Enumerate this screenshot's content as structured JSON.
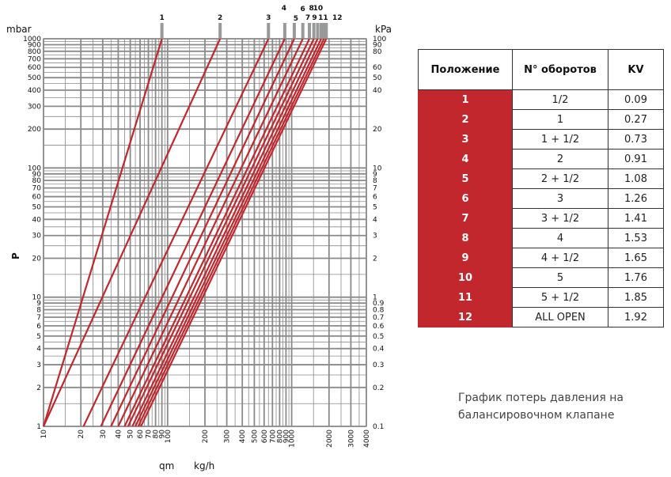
{
  "chart_data": {
    "type": "line",
    "x_scale": "log",
    "y_scale": "log",
    "xlim": [
      10,
      4000
    ],
    "ylim": [
      1,
      1000
    ],
    "left_axis_label": "mbar",
    "right_axis_label": "kPa",
    "p_label": "P",
    "x_label_qm": "qm",
    "x_label_unit": "kg/h",
    "grid": true,
    "line_color": "#c1272d",
    "x_tick_labels": [
      "10",
      "20",
      "30",
      "40",
      "50",
      "60",
      "70",
      "80",
      "90",
      "100",
      "200",
      "300",
      "400",
      "500",
      "600",
      "700",
      "800",
      "900",
      "1000",
      "2000",
      "3000",
      "4000"
    ],
    "y_left_tick_labels": [
      "1",
      "2",
      "3",
      "4",
      "5",
      "6",
      "7",
      "8",
      "9",
      "10",
      "20",
      "30",
      "40",
      "50",
      "60",
      "70",
      "80",
      "90",
      "100",
      "200",
      "300",
      "400",
      "500",
      "600",
      "700",
      "800",
      "900",
      "1000"
    ],
    "y_right_tick_labels": [
      {
        "mbar": 1,
        "label": "0.1"
      },
      {
        "mbar": 2,
        "label": "0.2"
      },
      {
        "mbar": 3,
        "label": "0.3"
      },
      {
        "mbar": 4,
        "label": "0.4"
      },
      {
        "mbar": 5,
        "label": "0.5"
      },
      {
        "mbar": 6,
        "label": "0.6"
      },
      {
        "mbar": 7,
        "label": "0.7"
      },
      {
        "mbar": 8,
        "label": "0.8"
      },
      {
        "mbar": 9,
        "label": "0.9"
      },
      {
        "mbar": 10,
        "label": "1"
      },
      {
        "mbar": 20,
        "label": "2"
      },
      {
        "mbar": 30,
        "label": "3"
      },
      {
        "mbar": 40,
        "label": "4"
      },
      {
        "mbar": 50,
        "label": "5"
      },
      {
        "mbar": 60,
        "label": "6"
      },
      {
        "mbar": 70,
        "label": "7"
      },
      {
        "mbar": 80,
        "label": "8"
      },
      {
        "mbar": 90,
        "label": "9"
      },
      {
        "mbar": 100,
        "label": "10"
      },
      {
        "mbar": 200,
        "label": "20"
      },
      {
        "mbar": 400,
        "label": "40"
      },
      {
        "mbar": 500,
        "label": "50"
      },
      {
        "mbar": 600,
        "label": "60"
      },
      {
        "mbar": 800,
        "label": "80"
      },
      {
        "mbar": 900,
        "label": "90"
      },
      {
        "mbar": 1000,
        "label": "100"
      }
    ],
    "series": [
      {
        "position": "1",
        "flow_at_1000mbar": 90,
        "flow_at_1mbar": 10
      },
      {
        "position": "2",
        "flow_at_1000mbar": 265,
        "flow_at_1mbar": 10
      },
      {
        "position": "3",
        "flow_at_1000mbar": 650,
        "flow_at_1mbar": 21
      },
      {
        "position": "4",
        "flow_at_1000mbar": 880,
        "flow_at_1mbar": 29
      },
      {
        "position": "5",
        "flow_at_1000mbar": 1050,
        "flow_at_1mbar": 35
      },
      {
        "position": "6",
        "flow_at_1000mbar": 1230,
        "flow_at_1mbar": 40
      },
      {
        "position": "7",
        "flow_at_1000mbar": 1390,
        "flow_at_1mbar": 45
      },
      {
        "position": "8",
        "flow_at_1000mbar": 1510,
        "flow_at_1mbar": 48
      },
      {
        "position": "9",
        "flow_at_1000mbar": 1620,
        "flow_at_1mbar": 52
      },
      {
        "position": "10",
        "flow_at_1000mbar": 1730,
        "flow_at_1mbar": 55
      },
      {
        "position": "11",
        "flow_at_1000mbar": 1820,
        "flow_at_1mbar": 58
      },
      {
        "position": "12",
        "flow_at_1000mbar": 1900,
        "flow_at_1mbar": 61
      }
    ]
  },
  "table": {
    "headers": [
      "Положение",
      "N° оборотов",
      "KV"
    ],
    "rows": [
      {
        "pos": "1",
        "turns": "1/2",
        "kv": "0.09"
      },
      {
        "pos": "2",
        "turns": "1",
        "kv": "0.27"
      },
      {
        "pos": "3",
        "turns": "1 + 1/2",
        "kv": "0.73"
      },
      {
        "pos": "4",
        "turns": "2",
        "kv": "0.91"
      },
      {
        "pos": "5",
        "turns": "2 + 1/2",
        "kv": "1.08"
      },
      {
        "pos": "6",
        "turns": "3",
        "kv": "1.26"
      },
      {
        "pos": "7",
        "turns": "3 + 1/2",
        "kv": "1.41"
      },
      {
        "pos": "8",
        "turns": "4",
        "kv": "1.53"
      },
      {
        "pos": "9",
        "turns": "4 + 1/2",
        "kv": "1.65"
      },
      {
        "pos": "10",
        "turns": "5",
        "kv": "1.76"
      },
      {
        "pos": "11",
        "turns": "5 + 1/2",
        "kv": "1.85"
      },
      {
        "pos": "12",
        "turns": "ALL OPEN",
        "kv": "1.92"
      }
    ]
  },
  "caption": {
    "line1": "График потерь давления на",
    "line2": "балансировочном клапане"
  }
}
